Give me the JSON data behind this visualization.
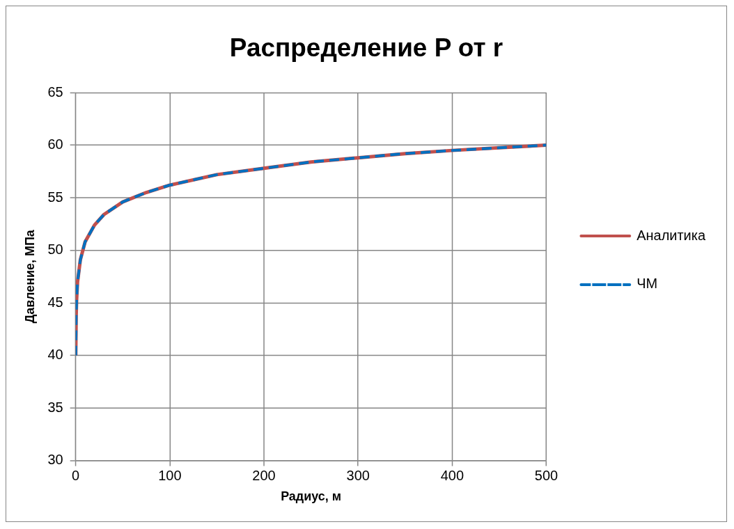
{
  "chart_data": {
    "type": "line",
    "title": "Распределение P от r",
    "xlabel": "Радиус, м",
    "ylabel": "Давление, МПа",
    "x": [
      0.1,
      0.5,
      1,
      2,
      5,
      10,
      20,
      30,
      50,
      75,
      100,
      150,
      200,
      250,
      300,
      350,
      400,
      450,
      500
    ],
    "series": [
      {
        "name": "Аналитика",
        "color": "#c0504d",
        "line_style": "solid",
        "values": [
          40,
          43.7,
          45.3,
          47,
          49.1,
          50.8,
          52.4,
          53.4,
          54.6,
          55.5,
          56.2,
          57.2,
          57.8,
          58.4,
          58.8,
          59.2,
          59.5,
          59.75,
          60
        ]
      },
      {
        "name": "ЧМ",
        "color": "#0070c0",
        "line_style": "dashed",
        "values": [
          40,
          43.7,
          45.3,
          47,
          49.1,
          50.8,
          52.4,
          53.4,
          54.6,
          55.5,
          56.2,
          57.2,
          57.8,
          58.4,
          58.8,
          59.2,
          59.5,
          59.75,
          60
        ]
      }
    ],
    "xlim": [
      0,
      500
    ],
    "xticks": [
      0,
      100,
      200,
      300,
      400,
      500
    ],
    "ylim": [
      30,
      65
    ],
    "yticks": [
      30,
      35,
      40,
      45,
      50,
      55,
      60,
      65
    ],
    "grid": true,
    "legend": "right",
    "marker": "none"
  }
}
